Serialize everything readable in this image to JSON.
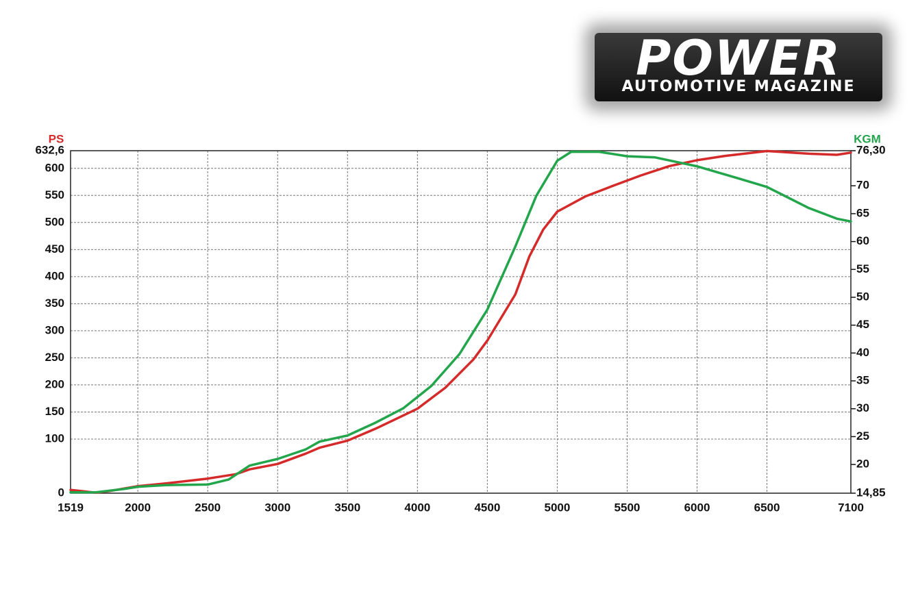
{
  "logo": {
    "title": "POWER",
    "subtitle": "AUTOMOTIVE MAGAZINE"
  },
  "chart_data": {
    "type": "line",
    "ylabel": "PS",
    "y2label": "KGM",
    "grid": true,
    "xlim": [
      1519,
      7100
    ],
    "xticks": [
      1519,
      2000,
      2500,
      3000,
      3500,
      4000,
      4500,
      5000,
      5500,
      6000,
      6500,
      7100
    ],
    "ylim": [
      0,
      632.6
    ],
    "yticks": [
      0,
      100,
      150,
      200,
      250,
      300,
      350,
      400,
      450,
      500,
      550,
      600,
      {
        "value": 632.6,
        "label": "632,6"
      }
    ],
    "y2lim": [
      14.85,
      76.3
    ],
    "y2ticks": [
      {
        "value": 14.85,
        "label": "14,85"
      },
      20,
      25,
      30,
      35,
      40,
      45,
      50,
      55,
      60,
      65,
      70,
      {
        "value": 76.3,
        "label": "76,30"
      }
    ],
    "series": [
      {
        "name": "PS",
        "color": "#d42a2a",
        "x": [
          1519,
          1700,
          1800,
          2000,
          2200,
          2500,
          2700,
          2800,
          3000,
          3200,
          3300,
          3500,
          3700,
          4000,
          4200,
          4400,
          4500,
          4700,
          4800,
          4900,
          5000,
          5200,
          5400,
          5600,
          5800,
          6000,
          6200,
          6500,
          6800,
          7000,
          7100
        ],
        "values": [
          6,
          1,
          4,
          13,
          18,
          27,
          35,
          44,
          54,
          73,
          84,
          97,
          119,
          156,
          195,
          247,
          282,
          367,
          437,
          487,
          520,
          548,
          568,
          587,
          604,
          615,
          623,
          632,
          627,
          625,
          629
        ]
      },
      {
        "name": "KGM",
        "color": "#22a54b",
        "axis": "y2",
        "x": [
          1519,
          1700,
          1900,
          2000,
          2200,
          2500,
          2650,
          2800,
          3000,
          3200,
          3300,
          3500,
          3700,
          3900,
          4100,
          4300,
          4500,
          4700,
          4850,
          5000,
          5100,
          5300,
          5500,
          5700,
          6000,
          6300,
          6500,
          6800,
          7000,
          7100
        ],
        "values": [
          15.0,
          15.0,
          15.6,
          16.0,
          16.3,
          16.4,
          17.3,
          19.8,
          21.0,
          22.7,
          24.1,
          25.2,
          27.5,
          30.1,
          34.1,
          39.8,
          47.8,
          59.1,
          68.2,
          74.5,
          76.1,
          76.1,
          75.3,
          75.1,
          73.5,
          71.3,
          69.8,
          66.0,
          64.1,
          63.6
        ]
      }
    ]
  }
}
